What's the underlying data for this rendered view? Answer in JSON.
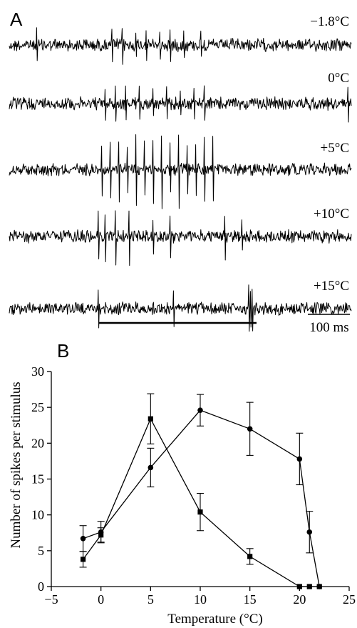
{
  "panel_a": {
    "label": "A",
    "scale_bar_label": "100 ms",
    "traces": [
      {
        "label": "−1.8°C",
        "spikes": [
          0.08,
          0.3,
          0.33,
          0.37,
          0.4,
          0.44,
          0.47,
          0.51,
          0.56
        ],
        "spike_amp": 20
      },
      {
        "label": "0°C",
        "spikes": [
          0.28,
          0.31,
          0.34,
          0.38,
          0.42,
          0.46,
          0.5,
          0.54,
          0.57,
          0.99
        ],
        "spike_amp": 20
      },
      {
        "label": "+5°C",
        "spikes": [
          0.27,
          0.295,
          0.32,
          0.345,
          0.37,
          0.395,
          0.42,
          0.445,
          0.47,
          0.495,
          0.52,
          0.545,
          0.57,
          0.595
        ],
        "spike_amp": 40
      },
      {
        "label": "+10°C",
        "spikes": [
          0.26,
          0.28,
          0.31,
          0.35,
          0.42,
          0.47,
          0.63,
          0.68
        ],
        "spike_amp": 30
      },
      {
        "label": "+15°C",
        "spikes": [
          0.26,
          0.48,
          0.7,
          0.705,
          0.71
        ],
        "spike_amp": 30
      }
    ]
  },
  "chart_data": {
    "type": "line",
    "panel_label": "B",
    "xlabel": "Temperature (°C)",
    "ylabel": "Number of spikes per stimulus",
    "xlim": [
      -5,
      25
    ],
    "ylim": [
      0,
      30
    ],
    "xticks": [
      -5,
      0,
      5,
      10,
      15,
      20,
      25
    ],
    "yticks": [
      0,
      5,
      10,
      15,
      20,
      25,
      30
    ],
    "grid": false,
    "series": [
      {
        "marker": "circle",
        "x": [
          -1.8,
          0,
          5,
          10,
          15,
          20,
          21,
          22
        ],
        "y": [
          6.7,
          7.6,
          16.6,
          24.6,
          22.0,
          17.8,
          7.6,
          0
        ],
        "err": [
          1.8,
          1.5,
          2.7,
          2.2,
          3.7,
          3.6,
          2.9,
          0
        ]
      },
      {
        "marker": "square",
        "x": [
          -1.8,
          0,
          5,
          10,
          15,
          20,
          21,
          22
        ],
        "y": [
          3.8,
          7.2,
          23.4,
          10.4,
          4.2,
          0,
          0,
          0
        ],
        "err": [
          1.1,
          1.0,
          3.5,
          2.6,
          1.1,
          0,
          0,
          0
        ]
      }
    ]
  }
}
